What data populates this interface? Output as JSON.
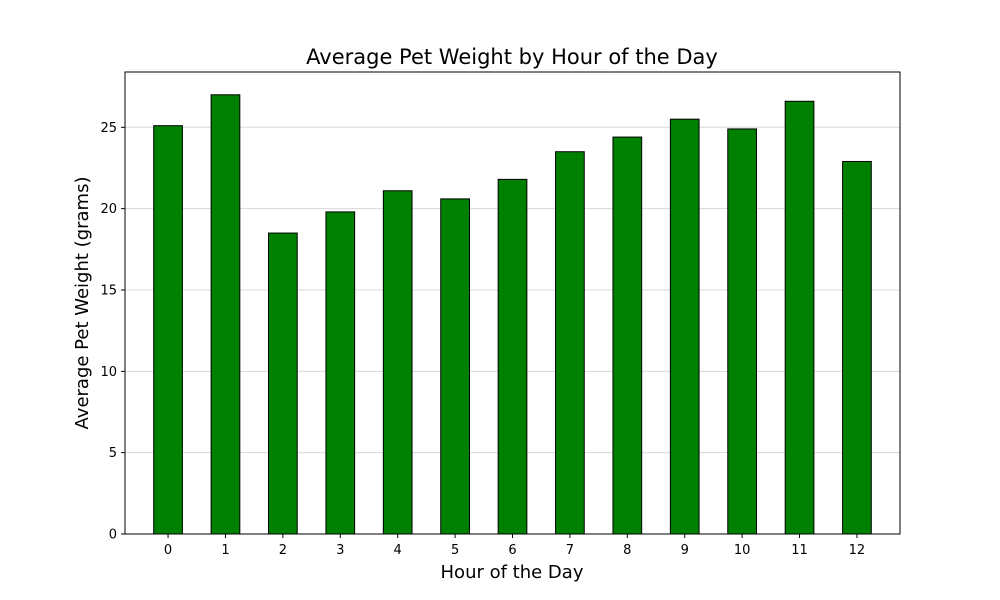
{
  "chart_data": {
    "type": "bar",
    "title": "Average Pet Weight by Hour of the Day",
    "xlabel": "Hour of the Day",
    "ylabel": "Average Pet Weight (grams)",
    "categories": [
      "0",
      "1",
      "2",
      "3",
      "4",
      "5",
      "6",
      "7",
      "8",
      "9",
      "10",
      "11",
      "12"
    ],
    "values": [
      25.1,
      27.0,
      18.5,
      19.8,
      21.1,
      20.6,
      21.8,
      23.5,
      24.4,
      25.5,
      24.9,
      26.6,
      22.9
    ],
    "ylim": [
      0,
      28.4
    ],
    "yticks": [
      0,
      5,
      10,
      15,
      20,
      25
    ],
    "grid": "horizontal",
    "bar_color": "#008000",
    "edge_color": "#000000",
    "legend": "none"
  }
}
